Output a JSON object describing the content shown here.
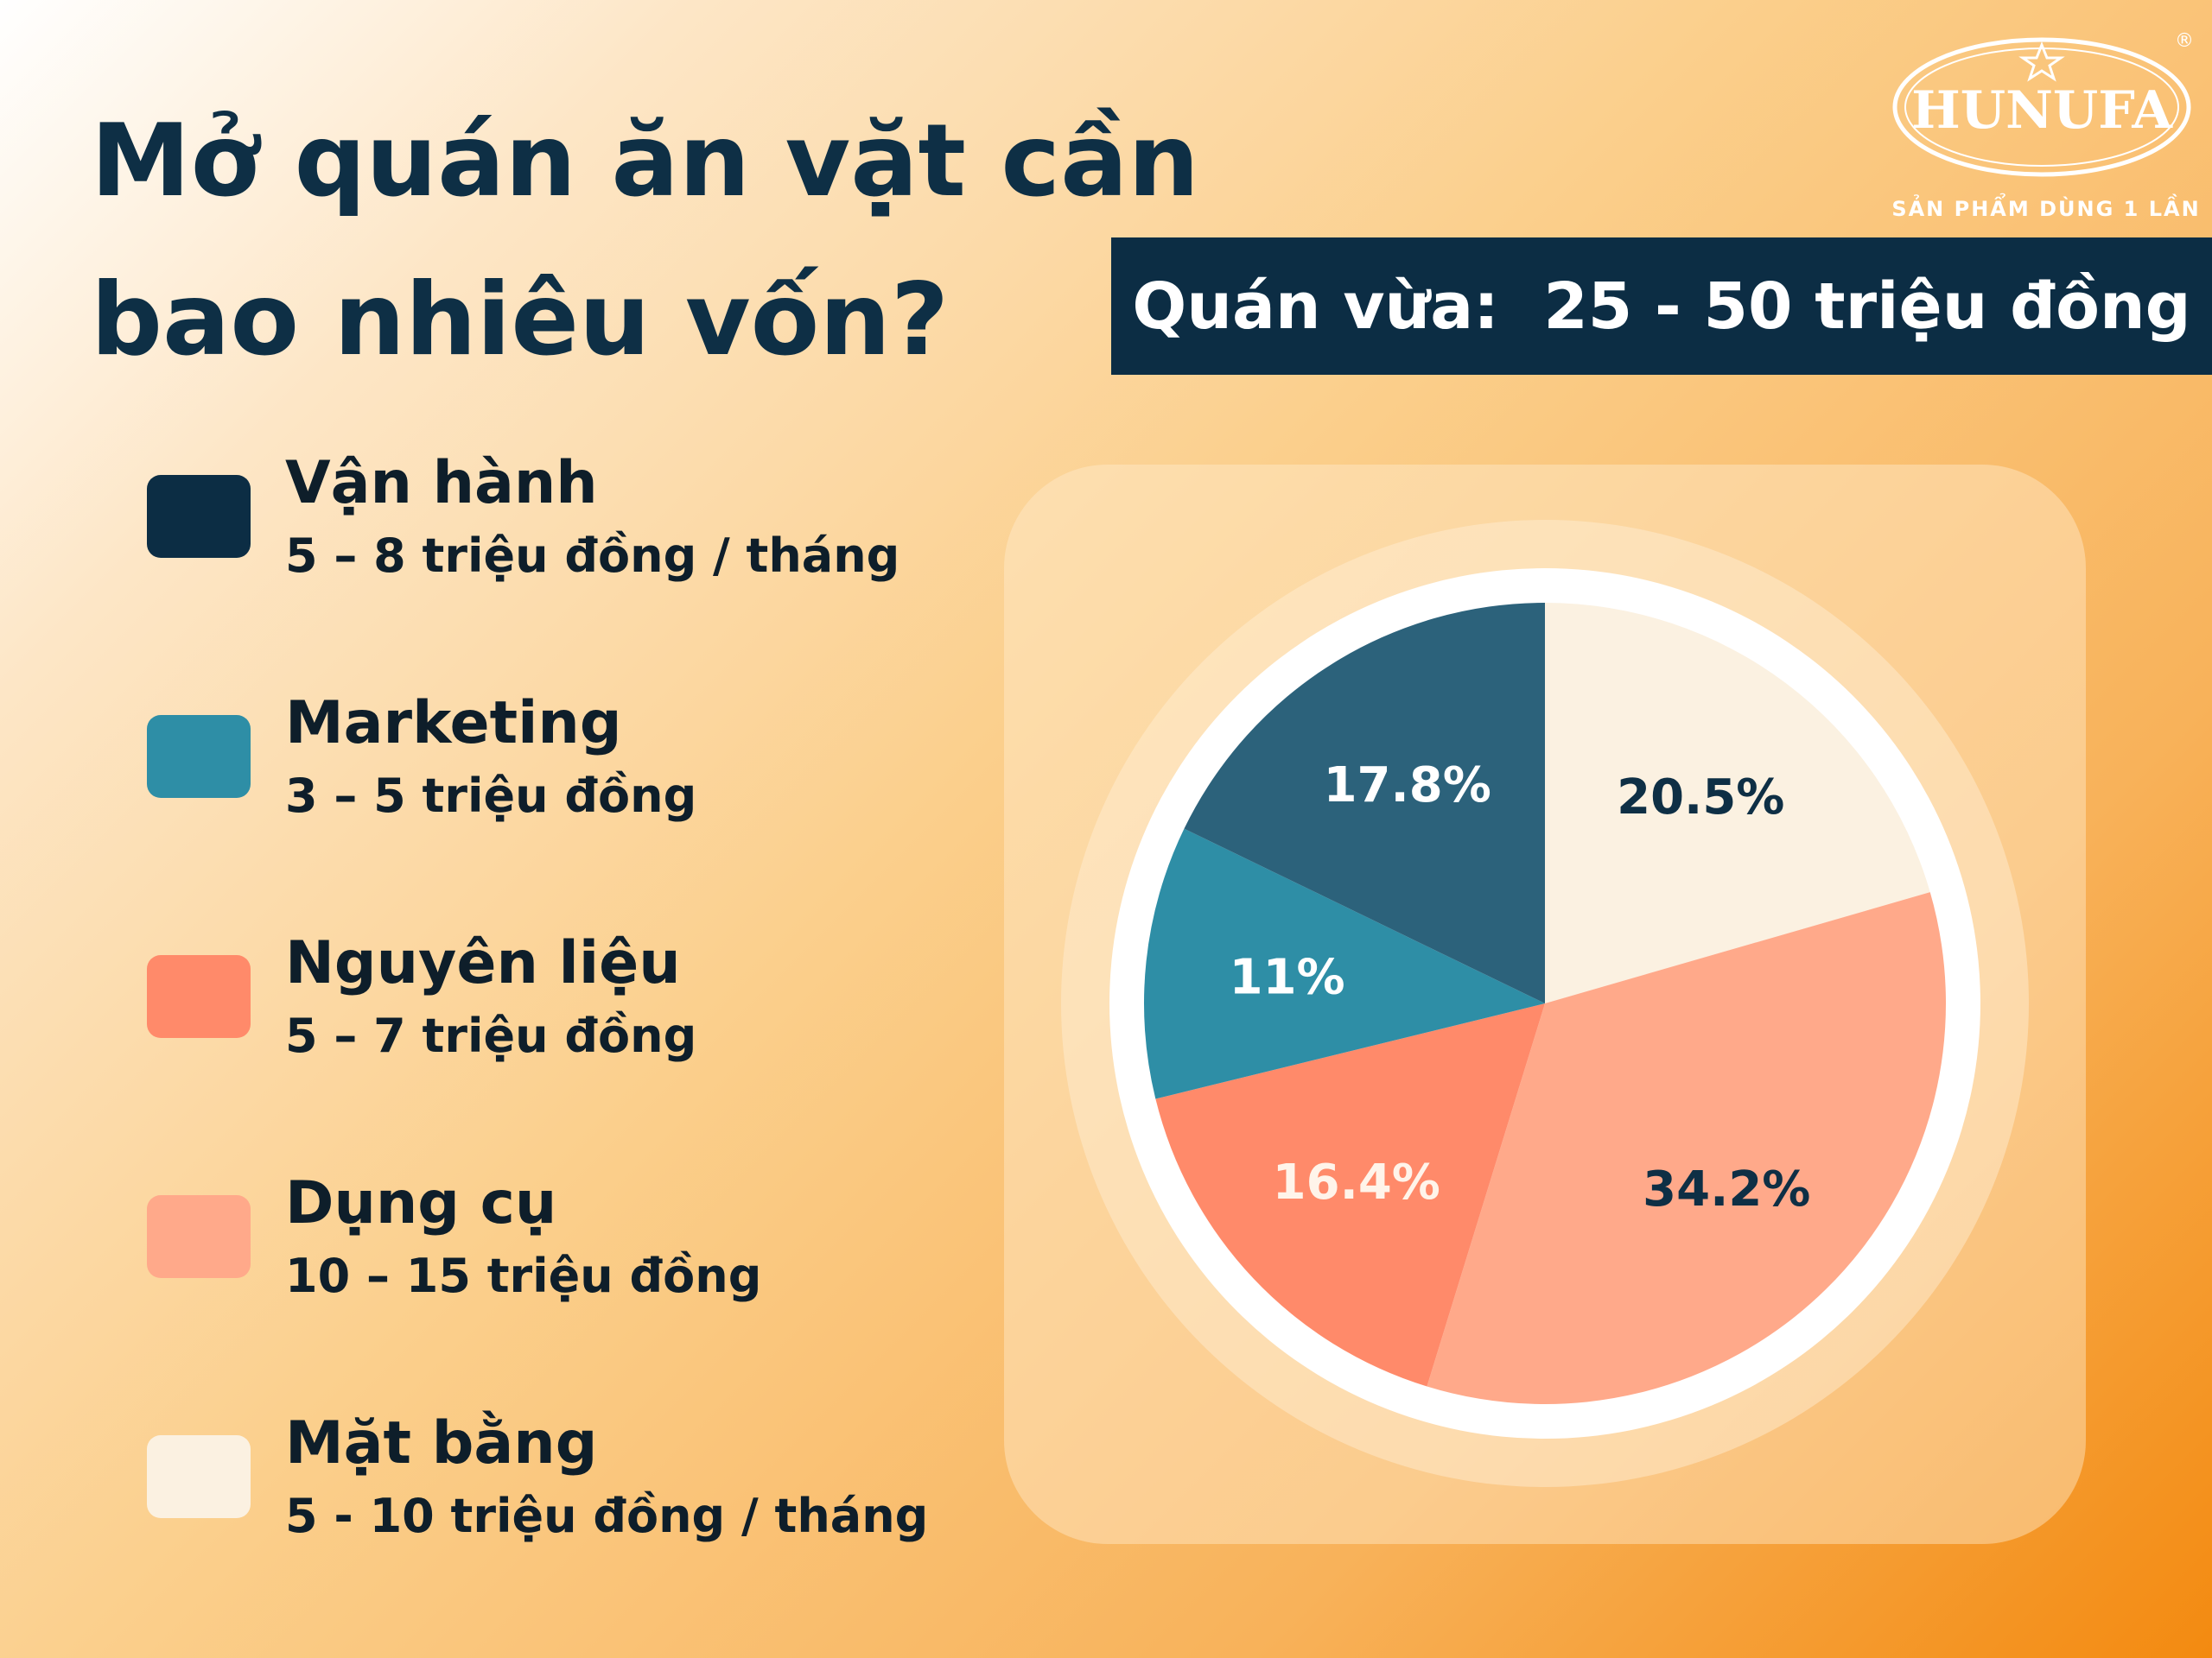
{
  "title": {
    "line1": "Mở quán ăn vặt cần",
    "line2": "bao nhiêu vốn?"
  },
  "banner": {
    "text": "Quán vừa:  25 - 50 triệu đồng"
  },
  "logo": {
    "brand": "HUNUFA",
    "tagline": "SẢN PHẨM DÙNG 1 LẦN",
    "registered_mark": "®"
  },
  "legend": {
    "items": [
      {
        "name": "Vận hành",
        "value": "5 – 8 triệu đồng / tháng",
        "color": "#0c2d44"
      },
      {
        "name": "Marketing",
        "value": "3 – 5 triệu đồng",
        "color": "#2e8ea6"
      },
      {
        "name": "Nguyên liệu",
        "value": "5 – 7 triệu đồng",
        "color": "#ff8a6a"
      },
      {
        "name": "Dụng cụ",
        "value": "10 – 15 triệu đồng",
        "color": "#ffa98a"
      },
      {
        "name": "Mặt bằng",
        "value": "5 - 10 triệu đồng / tháng",
        "color": "#fbf1e1"
      }
    ]
  },
  "chart_data": {
    "type": "pie",
    "start_angle_deg": 0,
    "direction": "clockwise",
    "slices": [
      {
        "label": "20.5%",
        "value": 20.5,
        "color": "#fbf1e1",
        "text_color": "#0e2f45",
        "category": "Mặt bằng"
      },
      {
        "label": "34.2%",
        "value": 34.2,
        "color": "#ffa98a",
        "text_color": "#0e2f45",
        "category": "Dụng cụ"
      },
      {
        "label": "16.4%",
        "value": 16.4,
        "color": "#ff8a6a",
        "text_color": "#fff4ea",
        "category": "Nguyên liệu"
      },
      {
        "label": "11%",
        "value": 11,
        "color": "#2e8ea6",
        "text_color": "#ffffff",
        "category": "Marketing"
      },
      {
        "label": "17.8%",
        "value": 17.8,
        "color": "#2c627b",
        "text_color": "#ffffff",
        "category": "Vận hành"
      }
    ]
  }
}
